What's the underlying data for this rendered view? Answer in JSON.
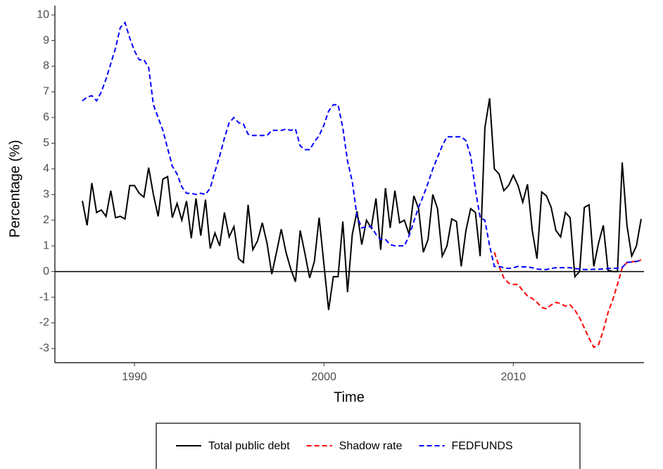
{
  "chart_data": {
    "type": "line",
    "xlabel": "Time",
    "ylabel": "Percentage (%)",
    "x": [
      1987.25,
      1987.5,
      1987.75,
      1988,
      1988.25,
      1988.5,
      1988.75,
      1989,
      1989.25,
      1989.5,
      1989.75,
      1990,
      1990.25,
      1990.5,
      1990.75,
      1991,
      1991.25,
      1991.5,
      1991.75,
      1992,
      1992.25,
      1992.5,
      1992.75,
      1993,
      1993.25,
      1993.5,
      1993.75,
      1994,
      1994.25,
      1994.5,
      1994.75,
      1995,
      1995.25,
      1995.5,
      1995.75,
      1996,
      1996.25,
      1996.5,
      1996.75,
      1997,
      1997.25,
      1997.5,
      1997.75,
      1998,
      1998.25,
      1998.5,
      1998.75,
      1999,
      1999.25,
      1999.5,
      1999.75,
      2000,
      2000.25,
      2000.5,
      2000.75,
      2001,
      2001.25,
      2001.5,
      2001.75,
      2002,
      2002.25,
      2002.5,
      2002.75,
      2003,
      2003.25,
      2003.5,
      2003.75,
      2004,
      2004.25,
      2004.5,
      2004.75,
      2005,
      2005.25,
      2005.5,
      2005.75,
      2006,
      2006.25,
      2006.5,
      2006.75,
      2007,
      2007.25,
      2007.5,
      2007.75,
      2008,
      2008.25,
      2008.5,
      2008.75,
      2009,
      2009.25,
      2009.5,
      2009.75,
      2010,
      2010.25,
      2010.5,
      2010.75,
      2011,
      2011.25,
      2011.5,
      2011.75,
      2012,
      2012.25,
      2012.5,
      2012.75,
      2013,
      2013.25,
      2013.5,
      2013.75,
      2014,
      2014.25,
      2014.5,
      2014.75,
      2015,
      2015.25,
      2015.5,
      2015.75,
      2016,
      2016.25,
      2016.5,
      2016.75
    ],
    "series": [
      {
        "name": "Total public debt",
        "color": "#000000",
        "dash": "solid",
        "values": [
          2.75,
          1.8,
          3.45,
          2.3,
          2.4,
          2.15,
          3.15,
          2.1,
          2.15,
          2.05,
          3.35,
          3.35,
          3.05,
          2.9,
          4.05,
          3.0,
          2.15,
          3.6,
          3.7,
          2.1,
          2.65,
          2.0,
          2.75,
          1.3,
          2.85,
          1.4,
          2.8,
          0.9,
          1.5,
          1.0,
          2.3,
          1.35,
          1.75,
          0.5,
          0.35,
          2.6,
          0.85,
          1.2,
          1.9,
          1.1,
          -0.1,
          0.75,
          1.65,
          0.75,
          0.1,
          -0.4,
          1.6,
          0.7,
          -0.25,
          0.4,
          2.1,
          0.3,
          -1.5,
          -0.2,
          -0.2,
          1.95,
          -0.8,
          1.45,
          2.35,
          1.05,
          2.0,
          1.7,
          2.85,
          0.85,
          3.25,
          1.7,
          3.15,
          1.9,
          2.0,
          1.45,
          2.95,
          2.45,
          0.75,
          1.25,
          3.0,
          2.45,
          0.6,
          1.0,
          2.05,
          1.95,
          0.2,
          1.6,
          2.45,
          2.3,
          0.6,
          5.6,
          6.75,
          4.0,
          3.8,
          3.15,
          3.35,
          3.75,
          3.35,
          2.7,
          3.4,
          1.6,
          0.5,
          3.1,
          2.95,
          2.5,
          1.6,
          1.35,
          2.3,
          2.1,
          -0.2,
          0.0,
          2.5,
          2.6,
          0.2,
          1.1,
          1.8,
          0.05,
          0.0,
          0.0,
          4.25,
          1.8,
          0.6,
          1.0,
          2.05
        ]
      },
      {
        "name": "Shadow rate",
        "color": "#ff0000",
        "dash": "dashed",
        "values": [
          null,
          null,
          null,
          null,
          null,
          null,
          null,
          null,
          null,
          null,
          null,
          null,
          null,
          null,
          null,
          null,
          null,
          null,
          null,
          null,
          null,
          null,
          null,
          null,
          null,
          null,
          null,
          null,
          null,
          null,
          null,
          null,
          null,
          null,
          null,
          null,
          null,
          null,
          null,
          null,
          null,
          null,
          null,
          null,
          null,
          null,
          null,
          null,
          null,
          null,
          null,
          null,
          null,
          null,
          null,
          null,
          null,
          null,
          null,
          null,
          null,
          null,
          null,
          null,
          null,
          null,
          null,
          null,
          null,
          null,
          null,
          null,
          null,
          null,
          null,
          null,
          null,
          null,
          null,
          null,
          null,
          null,
          null,
          null,
          null,
          null,
          null,
          0.75,
          0.2,
          -0.25,
          -0.45,
          -0.5,
          -0.5,
          -0.75,
          -0.95,
          -1.05,
          -1.2,
          -1.4,
          -1.45,
          -1.3,
          -1.2,
          -1.25,
          -1.35,
          -1.3,
          -1.5,
          -1.8,
          -2.2,
          -2.6,
          -2.95,
          -2.85,
          -2.3,
          -1.6,
          -1.1,
          -0.5,
          0.15,
          0.35,
          0.38,
          0.4,
          0.45
        ]
      },
      {
        "name": "FEDFUNDS",
        "color": "#0000ff",
        "dash": "dashed",
        "values": [
          6.65,
          6.8,
          6.85,
          6.65,
          7.0,
          7.5,
          8.1,
          8.7,
          9.5,
          9.7,
          9.1,
          8.6,
          8.25,
          8.25,
          7.95,
          6.5,
          6.0,
          5.5,
          4.8,
          4.1,
          3.8,
          3.3,
          3.05,
          3.05,
          3.0,
          3.05,
          3.0,
          3.25,
          3.9,
          4.5,
          5.2,
          5.8,
          6.0,
          5.8,
          5.75,
          5.35,
          5.3,
          5.3,
          5.3,
          5.3,
          5.5,
          5.5,
          5.5,
          5.55,
          5.5,
          5.55,
          4.9,
          4.75,
          4.75,
          5.05,
          5.3,
          5.7,
          6.25,
          6.5,
          6.5,
          5.6,
          4.3,
          3.5,
          2.15,
          1.7,
          1.75,
          1.75,
          1.45,
          1.25,
          1.25,
          1.05,
          1.0,
          1.0,
          1.0,
          1.4,
          1.95,
          2.5,
          2.95,
          3.45,
          4.0,
          4.45,
          4.9,
          5.25,
          5.25,
          5.25,
          5.25,
          5.1,
          4.5,
          3.2,
          2.1,
          2.0,
          1.0,
          0.2,
          0.2,
          0.15,
          0.12,
          0.15,
          0.2,
          0.18,
          0.18,
          0.15,
          0.1,
          0.08,
          0.08,
          0.12,
          0.15,
          0.15,
          0.15,
          0.15,
          0.12,
          0.1,
          0.08,
          0.08,
          0.09,
          0.09,
          0.1,
          0.12,
          0.12,
          0.13,
          0.16,
          0.36,
          0.37,
          0.39,
          0.45
        ]
      }
    ],
    "hline": 0,
    "xlim": [
      1985.8,
      2016.9
    ],
    "ylim": [
      -3.55,
      10.36
    ],
    "xticks": [
      1990,
      2000,
      2010
    ],
    "yticks": [
      -3,
      -2,
      -1,
      0,
      1,
      2,
      3,
      4,
      5,
      6,
      7,
      8,
      9,
      10
    ],
    "legend": "bottom"
  }
}
